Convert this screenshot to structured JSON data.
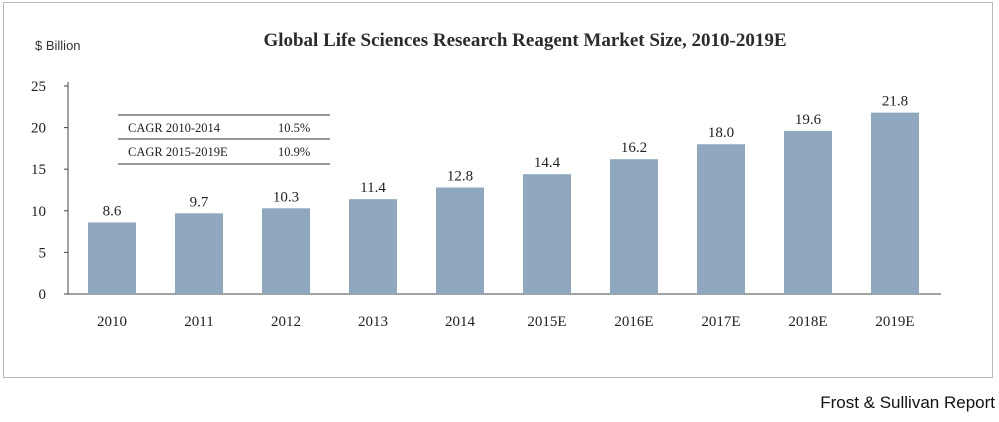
{
  "chart_data": {
    "type": "bar",
    "title": "Global Life Sciences Research Reagent Market Size, 2010-2019E",
    "ylabel": "$ Billion",
    "xlabel": "",
    "categories": [
      "2010",
      "2011",
      "2012",
      "2013",
      "2014",
      "2015E",
      "2016E",
      "2017E",
      "2018E",
      "2019E"
    ],
    "values": [
      8.6,
      9.7,
      10.3,
      11.4,
      12.8,
      14.4,
      16.2,
      18.0,
      19.6,
      21.8
    ],
    "value_labels": [
      "8.6",
      "9.7",
      "10.3",
      "11.4",
      "12.8",
      "14.4",
      "16.2",
      "18.0",
      "19.6",
      "21.8"
    ],
    "ylim": [
      0,
      25
    ],
    "yticks": [
      "0",
      "5",
      "10",
      "15",
      "20",
      "25"
    ],
    "grid": false,
    "bar_color": "#8fa7bf",
    "cagr_table": [
      {
        "label": "CAGR 2010-2014",
        "value": "10.5%"
      },
      {
        "label": "CAGR 2015-2019E",
        "value": "10.9%"
      }
    ]
  },
  "source": "Frost & Sullivan Report"
}
